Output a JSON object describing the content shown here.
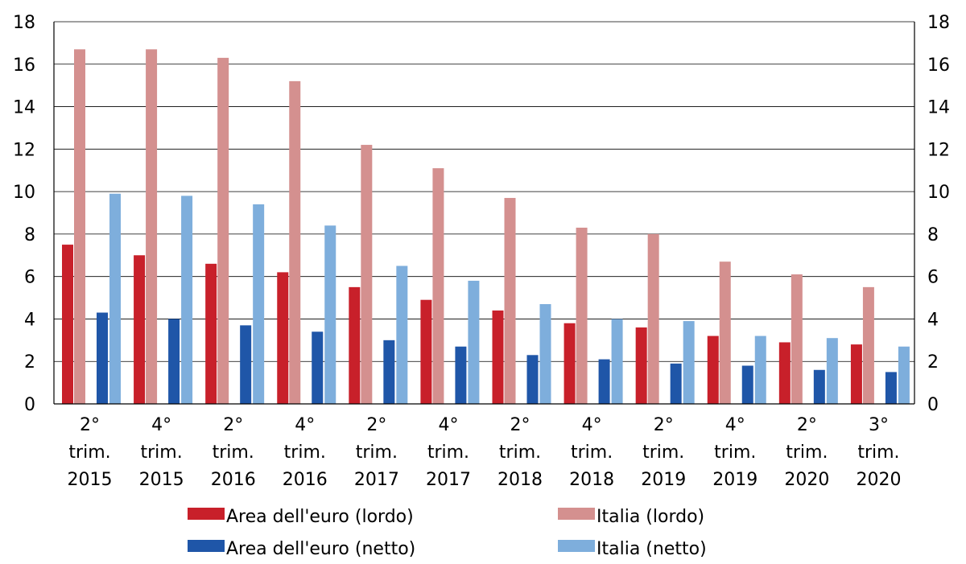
{
  "chart_data": {
    "type": "bar",
    "categories": [
      [
        "2°",
        "trim.",
        "2015"
      ],
      [
        "4°",
        "trim.",
        "2015"
      ],
      [
        "2°",
        "trim.",
        "2016"
      ],
      [
        "4°",
        "trim.",
        "2016"
      ],
      [
        "2°",
        "trim.",
        "2017"
      ],
      [
        "4°",
        "trim.",
        "2017"
      ],
      [
        "2°",
        "trim.",
        "2018"
      ],
      [
        "4°",
        "trim.",
        "2018"
      ],
      [
        "2°",
        "trim.",
        "2019"
      ],
      [
        "4°",
        "trim.",
        "2019"
      ],
      [
        "2°",
        "trim.",
        "2020"
      ],
      [
        "3°",
        "trim.",
        "2020"
      ]
    ],
    "series": [
      {
        "name": "Area dell'euro (lordo)",
        "color": "#c8202a",
        "values": [
          7.5,
          7.0,
          6.6,
          6.2,
          5.5,
          4.9,
          4.4,
          3.8,
          3.6,
          3.2,
          2.9,
          2.8
        ]
      },
      {
        "name": "Area dell'euro (netto)",
        "color": "#1f56a8",
        "values": [
          4.3,
          4.0,
          3.7,
          3.4,
          3.0,
          2.7,
          2.3,
          2.1,
          1.9,
          1.8,
          1.6,
          1.5
        ]
      },
      {
        "name": "Italia (netto)",
        "color": "#7eaedc",
        "values": [
          9.9,
          9.8,
          9.4,
          8.4,
          6.5,
          5.8,
          4.7,
          4.0,
          3.9,
          3.2,
          3.1,
          2.7
        ]
      },
      {
        "name": "Italia (lordo)",
        "color": "#d4908f",
        "values": [
          16.7,
          16.7,
          16.3,
          15.2,
          12.2,
          11.1,
          9.7,
          8.3,
          8.0,
          6.7,
          6.1,
          5.5
        ]
      }
    ],
    "bar_order": [
      "Area dell'euro (lordo)",
      "Italia (lordo)",
      "Area dell'euro (netto)",
      "Italia (netto)"
    ],
    "legend_order": [
      "Area dell'euro (lordo)",
      "Italia (lordo)",
      "Area dell'euro (netto)",
      "Italia (netto)"
    ],
    "yticks": [
      "0",
      "2",
      "4",
      "6",
      "8",
      "10",
      "12",
      "14",
      "16",
      "18"
    ],
    "ylim": [
      0,
      18
    ],
    "grid": true,
    "legend_position": "bottom",
    "title": "",
    "xlabel": "",
    "ylabel": ""
  }
}
